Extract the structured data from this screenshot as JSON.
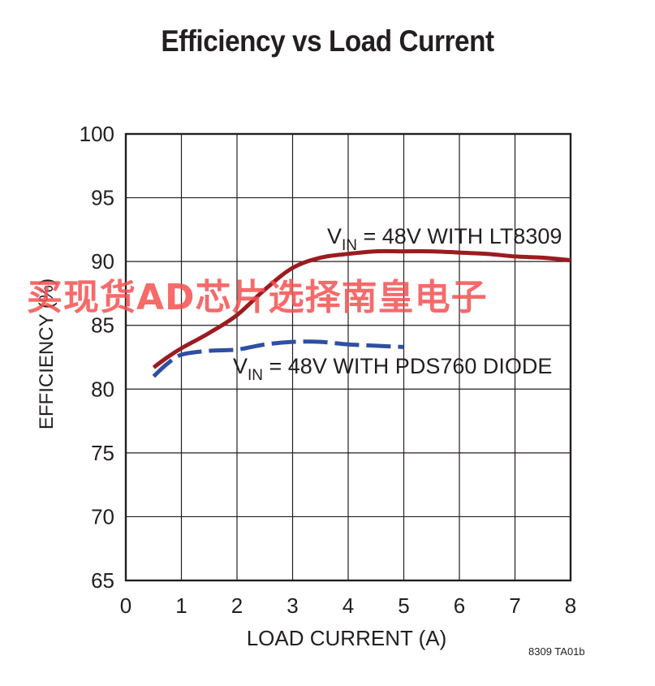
{
  "chart_data": {
    "type": "line",
    "title": "Efficiency vs Load Current",
    "xlabel": "LOAD CURRENT (A)",
    "ylabel": "EFFICIENCY (%)",
    "xlim": [
      0,
      8
    ],
    "ylim": [
      65,
      100
    ],
    "xticks": [
      "0",
      "1",
      "2",
      "3",
      "4",
      "5",
      "6",
      "7",
      "8"
    ],
    "yticks": [
      "65",
      "70",
      "75",
      "80",
      "85",
      "90",
      "95",
      "100"
    ],
    "grid": true,
    "series": [
      {
        "name": "V_IN = 48V WITH LT8309",
        "label_main": "V",
        "label_sub": "IN",
        "label_rest": " = 48V WITH LT8309",
        "color": "#9b1c1f",
        "style": "solid",
        "x": [
          0.5,
          0.75,
          1.0,
          1.5,
          2.0,
          2.5,
          3.0,
          3.5,
          4.0,
          4.5,
          5.0,
          5.5,
          6.0,
          6.5,
          7.0,
          7.5,
          8.0
        ],
        "y": [
          81.7,
          82.5,
          83.2,
          84.4,
          85.8,
          87.8,
          89.5,
          90.3,
          90.6,
          90.8,
          90.8,
          90.8,
          90.7,
          90.6,
          90.4,
          90.3,
          90.1
        ]
      },
      {
        "name": "V_IN = 48V WITH PDS760 DIODE",
        "label_main": "V",
        "label_sub": "IN",
        "label_rest": " = 48V WITH PDS760 DIODE",
        "color": "#2e4fa3",
        "style": "dashed",
        "x": [
          0.5,
          0.75,
          1.0,
          1.5,
          2.0,
          2.5,
          3.0,
          3.5,
          4.0,
          4.5,
          5.0
        ],
        "y": [
          81.0,
          82.0,
          82.7,
          83.0,
          83.1,
          83.5,
          83.7,
          83.7,
          83.5,
          83.4,
          83.3
        ]
      }
    ]
  },
  "footnote": "8309 TA01b",
  "watermark": "买现货AD芯片选择南皇电子"
}
